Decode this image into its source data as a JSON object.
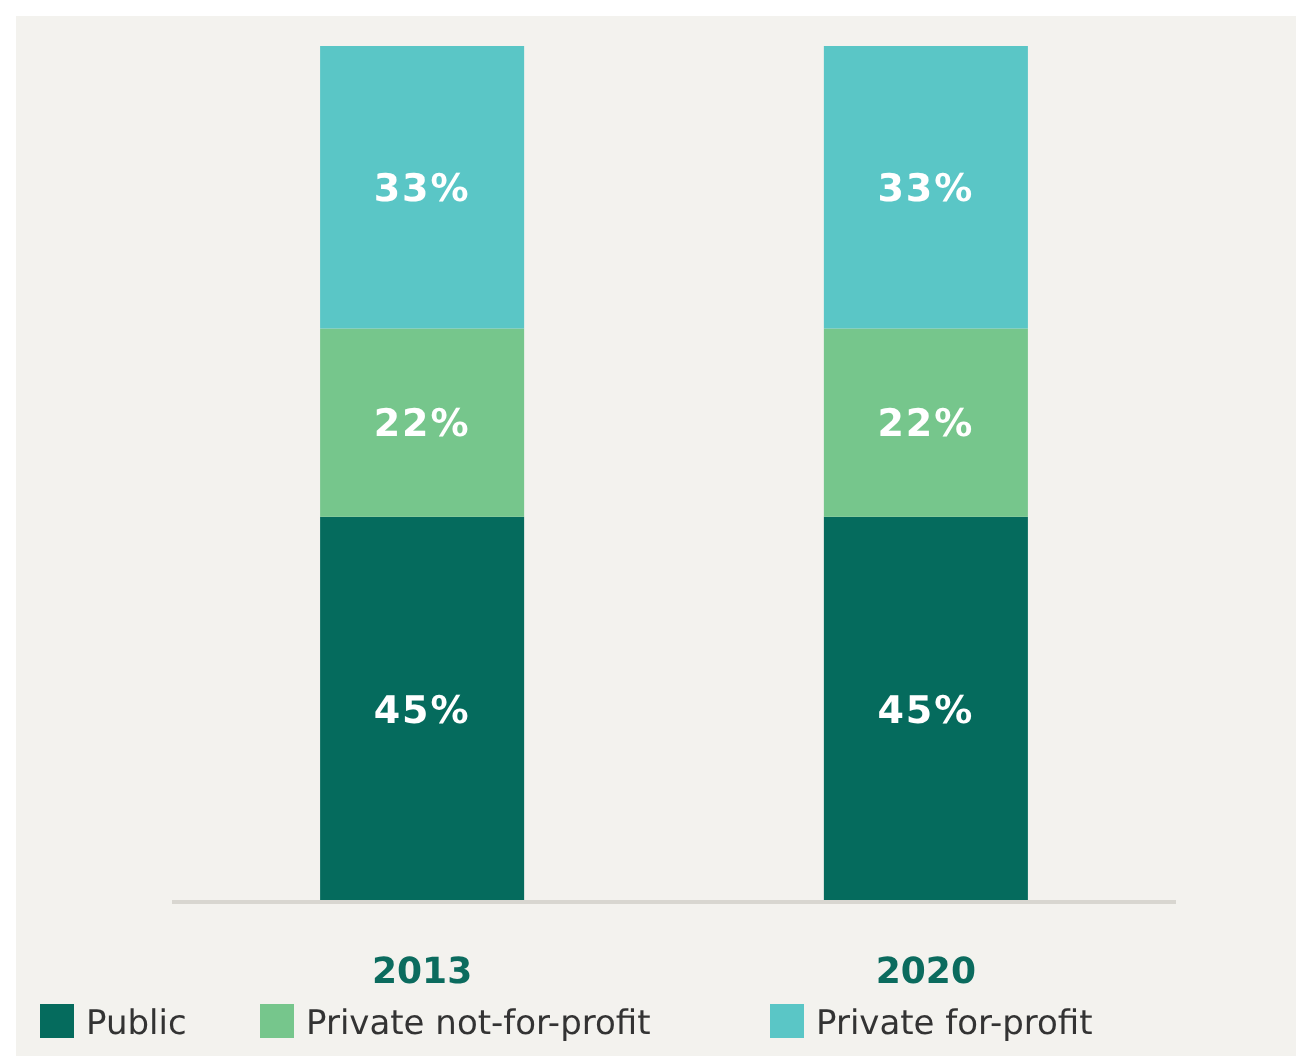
{
  "chart_data": {
    "type": "bar",
    "stacked": true,
    "legend": "bottom",
    "categories": [
      "2013",
      "2020"
    ],
    "series": [
      {
        "name": "Public",
        "color": "#056b5d",
        "values": [
          45,
          45
        ],
        "value_labels": [
          "45%",
          "45%"
        ]
      },
      {
        "name": "Private not-for-profit",
        "color": "#76c68c",
        "values": [
          22,
          22
        ],
        "value_labels": [
          "22%",
          "22%"
        ]
      },
      {
        "name": "Private for-profit",
        "color": "#5ac6c6",
        "values": [
          33,
          33
        ],
        "value_labels": [
          "33%",
          "33%"
        ]
      }
    ]
  }
}
